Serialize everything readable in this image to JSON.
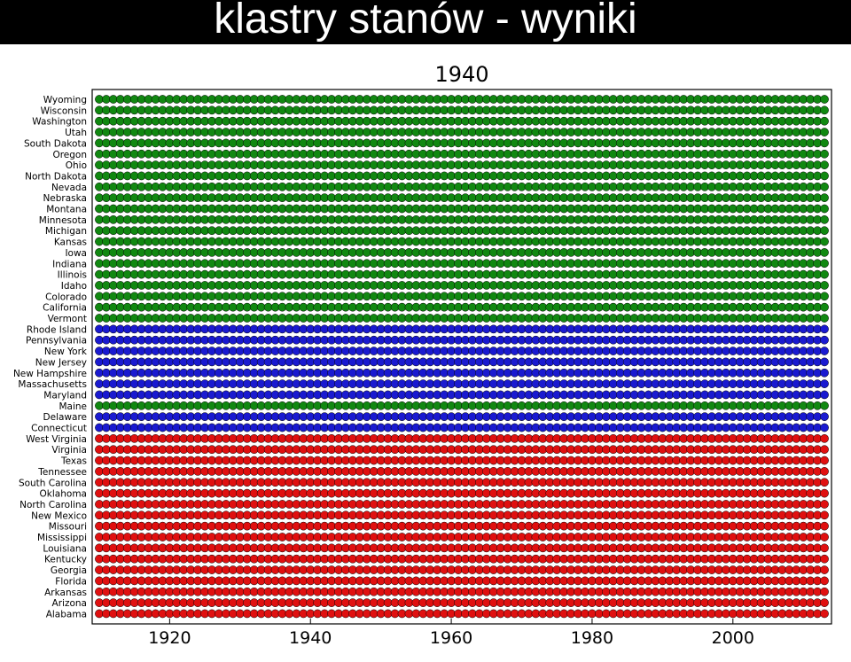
{
  "slide_title": "klastry stanów - wyniki",
  "colors": {
    "green": "#118811",
    "red": "#e01010",
    "blue": "#1a1ad0",
    "yellow": "#ffff33",
    "cyan": "#44e6f0",
    "white": "#ffffff"
  },
  "chart_data": {
    "type": "scatter",
    "title": "1940",
    "xlabel": "",
    "ylabel": "",
    "xlim": [
      1909,
      2014
    ],
    "x_ticks": [
      1920,
      1940,
      1960,
      1980,
      2000
    ],
    "grid": false,
    "states": [
      "Wyoming",
      "Wisconsin",
      "Washington",
      "Utah",
      "South Dakota",
      "Oregon",
      "Ohio",
      "North Dakota",
      "Nevada",
      "Nebraska",
      "Montana",
      "Minnesota",
      "Michigan",
      "Kansas",
      "Iowa",
      "Indiana",
      "Illinois",
      "Idaho",
      "Colorado",
      "California",
      "Vermont",
      "Rhode Island",
      "Pennsylvania",
      "New York",
      "New Jersey",
      "New Hampshire",
      "Massachusetts",
      "Maryland",
      "Maine",
      "Delaware",
      "Connecticut",
      "West Virginia",
      "Virginia",
      "Texas",
      "Tennessee",
      "South Carolina",
      "Oklahoma",
      "North Carolina",
      "New Mexico",
      "Missouri",
      "Mississippi",
      "Louisiana",
      "Kentucky",
      "Georgia",
      "Florida",
      "Arkansas",
      "Arizona",
      "Alabama"
    ],
    "base_cluster": [
      "green",
      "green",
      "green",
      "green",
      "green",
      "green",
      "green",
      "green",
      "green",
      "green",
      "green",
      "green",
      "green",
      "green",
      "green",
      "green",
      "green",
      "green",
      "green",
      "green",
      "green",
      "blue",
      "blue",
      "blue",
      "blue",
      "blue",
      "blue",
      "blue",
      "green",
      "blue",
      "blue",
      "red",
      "red",
      "red",
      "red",
      "red",
      "red",
      "red",
      "red",
      "red",
      "red",
      "red",
      "red",
      "red",
      "red",
      "red",
      "red",
      "red"
    ],
    "year_range": [
      1910,
      2013
    ]
  }
}
